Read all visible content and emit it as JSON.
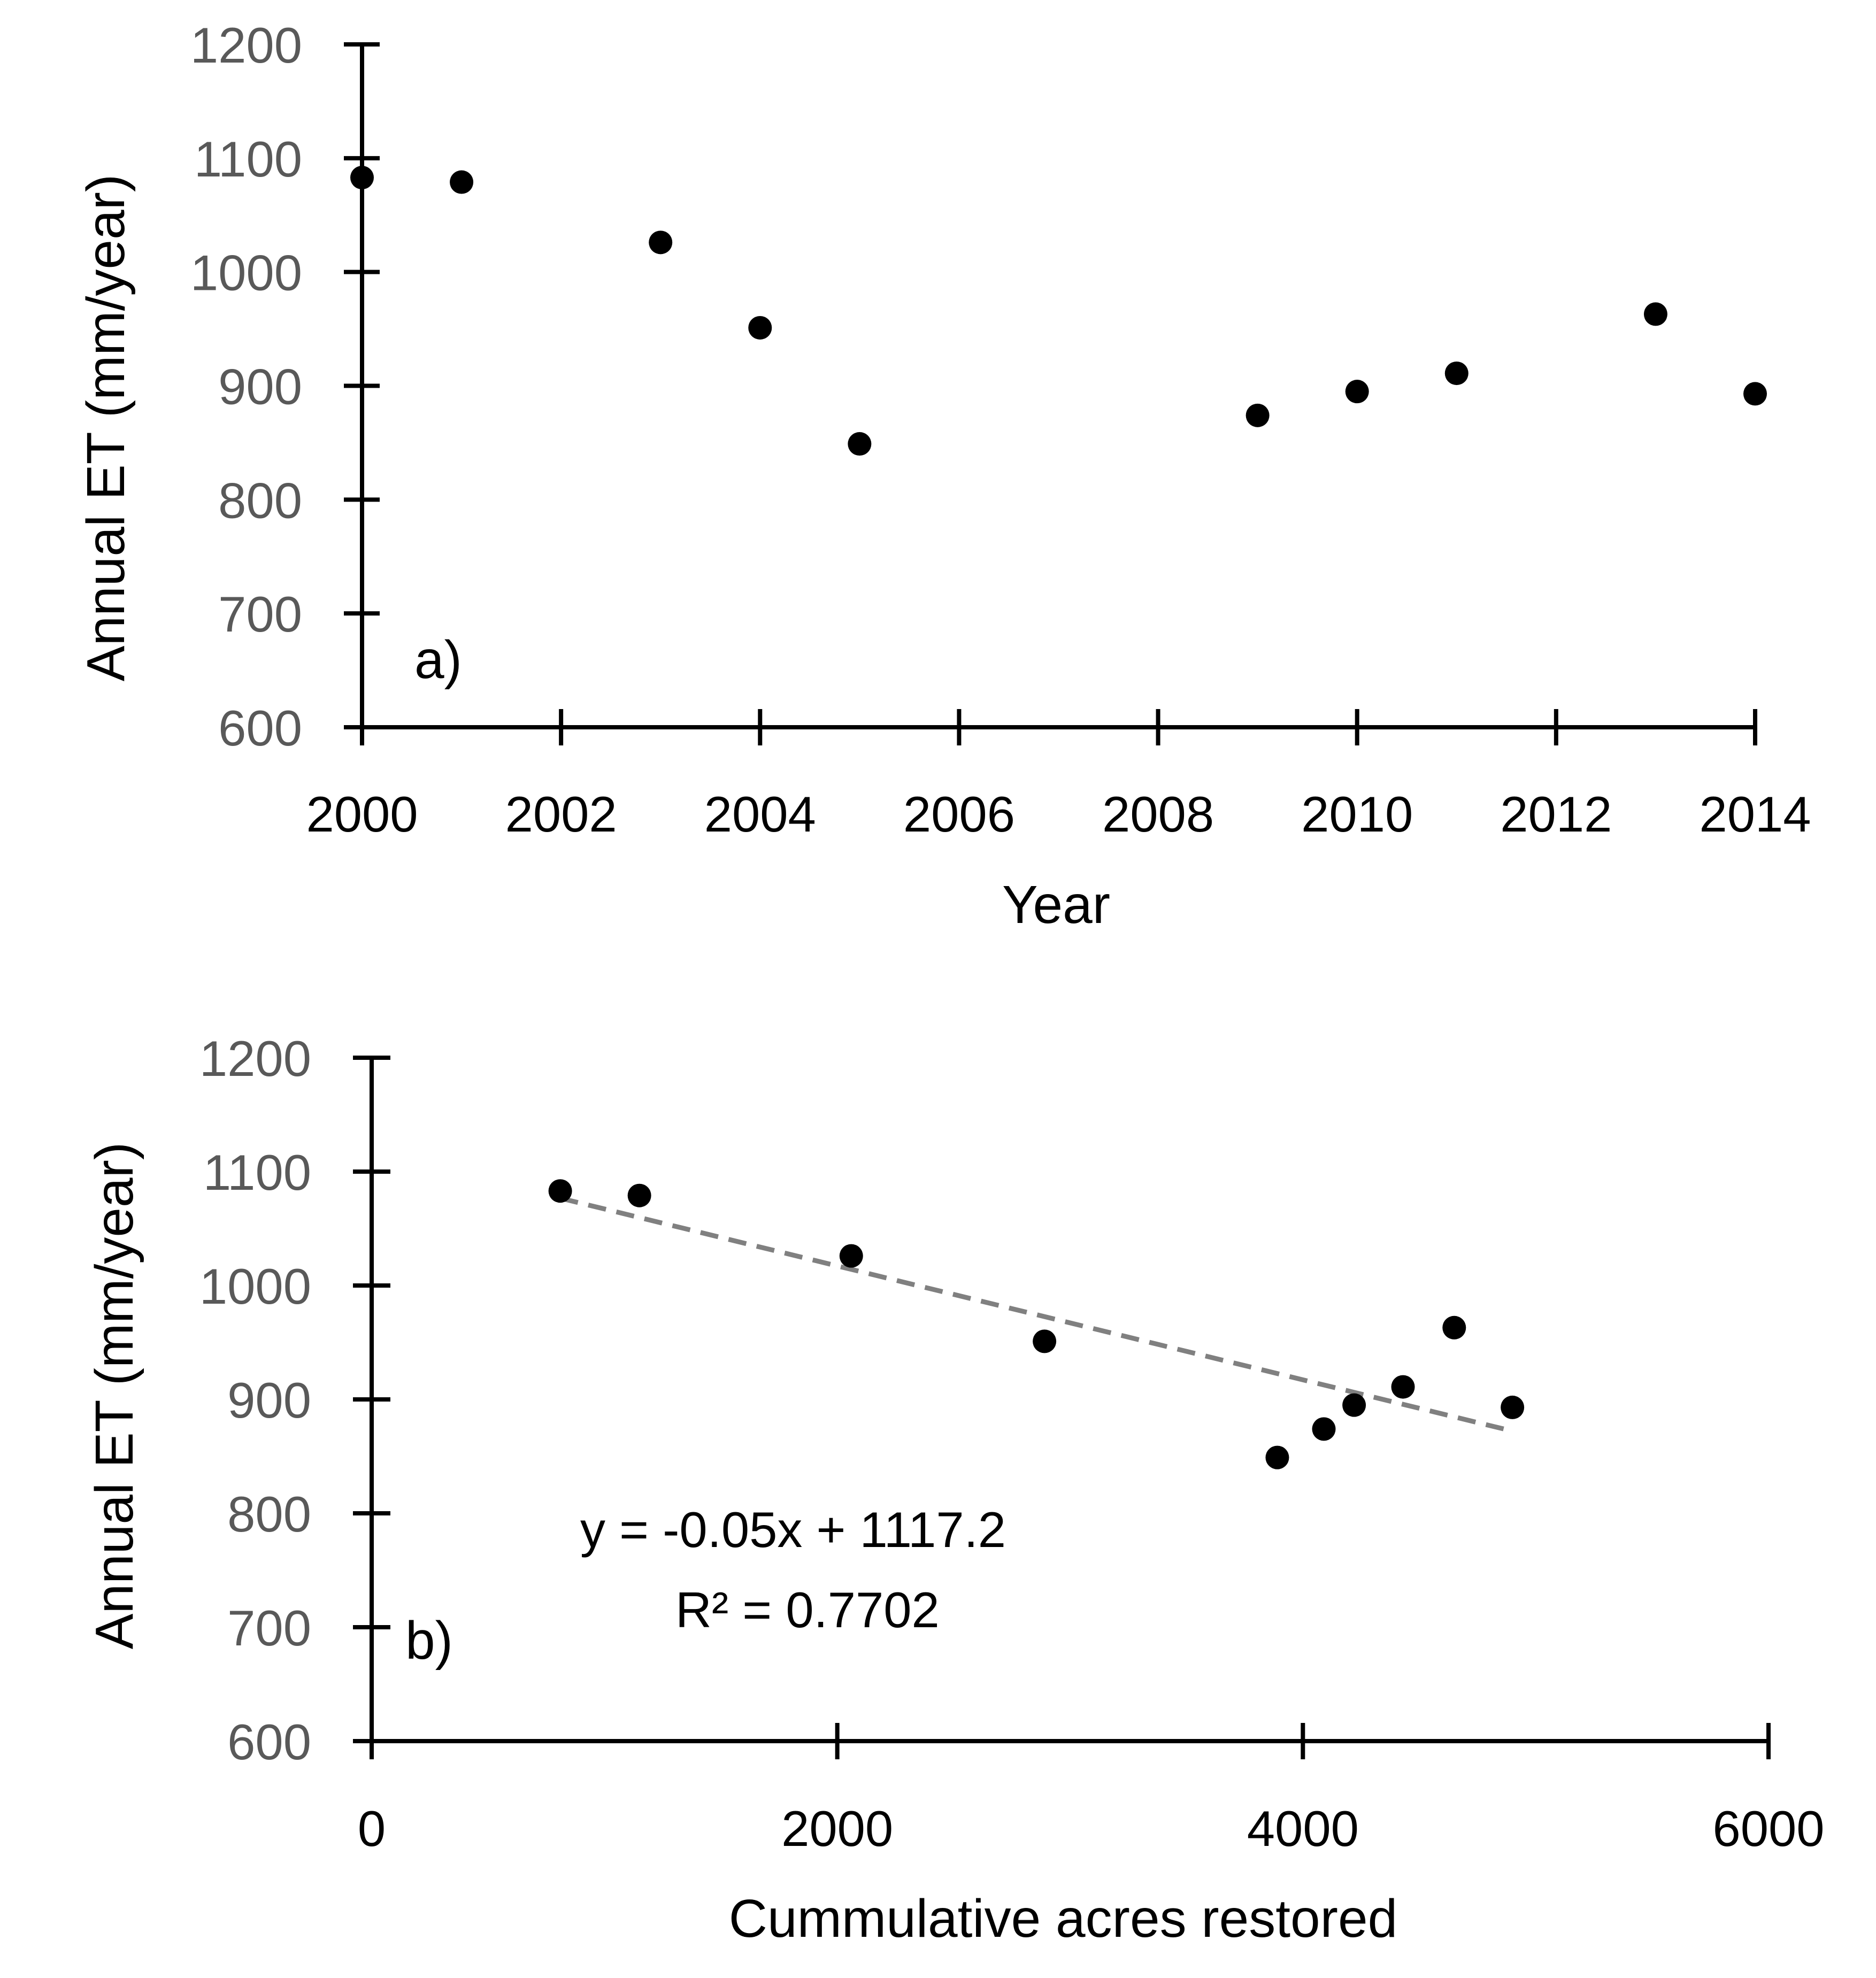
{
  "chart_data": [
    {
      "id": "a",
      "type": "scatter",
      "panel_label": "a)",
      "xlabel": "Year",
      "ylabel": "Annual ET (mm/year)",
      "xlim": [
        2000,
        2014
      ],
      "ylim": [
        600,
        1200
      ],
      "xticks": [
        2000,
        2002,
        2004,
        2006,
        2008,
        2010,
        2012,
        2014
      ],
      "yticks": [
        600,
        700,
        800,
        900,
        1000,
        1100,
        1200
      ],
      "xtick_labels": [
        "2000",
        "2002",
        "2004",
        "2006",
        "2008",
        "2010",
        "2012",
        "2014"
      ],
      "ytick_labels": [
        "600",
        "700",
        "800",
        "900",
        "1000",
        "1100",
        "1200"
      ],
      "series": [
        {
          "name": "Annual ET",
          "color": "#000000",
          "x": [
            2000,
            2001,
            2003,
            2004,
            2005,
            2009,
            2010,
            2011,
            2013,
            2014
          ],
          "y": [
            1083,
            1079,
            1026,
            951,
            849,
            874,
            895,
            911,
            963,
            893
          ]
        }
      ]
    },
    {
      "id": "b",
      "type": "scatter",
      "panel_label": "b)",
      "xlabel": "Cummulative acres restored",
      "ylabel": "Annual ET (mm/year)",
      "xlim": [
        0,
        6000
      ],
      "ylim": [
        600,
        1200
      ],
      "xticks": [
        0,
        2000,
        4000,
        6000
      ],
      "yticks": [
        600,
        700,
        800,
        900,
        1000,
        1100,
        1200
      ],
      "xtick_labels": [
        "0",
        "2000",
        "4000",
        "6000"
      ],
      "ytick_labels": [
        "600",
        "700",
        "800",
        "900",
        "1000",
        "1100",
        "1200"
      ],
      "series": [
        {
          "name": "Annual ET",
          "color": "#000000",
          "x": [
            810,
            1150,
            2060,
            2890,
            3890,
            4090,
            4220,
            4430,
            4650,
            4900
          ],
          "y": [
            1083,
            1079,
            1026,
            951,
            849,
            874,
            895,
            911,
            963,
            893
          ]
        }
      ],
      "trendline": {
        "slope": -0.05,
        "intercept": 1117.2,
        "x_range": [
          810,
          4900
        ],
        "color": "#808080",
        "style": "dashed"
      },
      "annotations": {
        "equation": "y = -0.05x + 1117.2",
        "r_squared": "R² = 0.7702"
      }
    }
  ]
}
